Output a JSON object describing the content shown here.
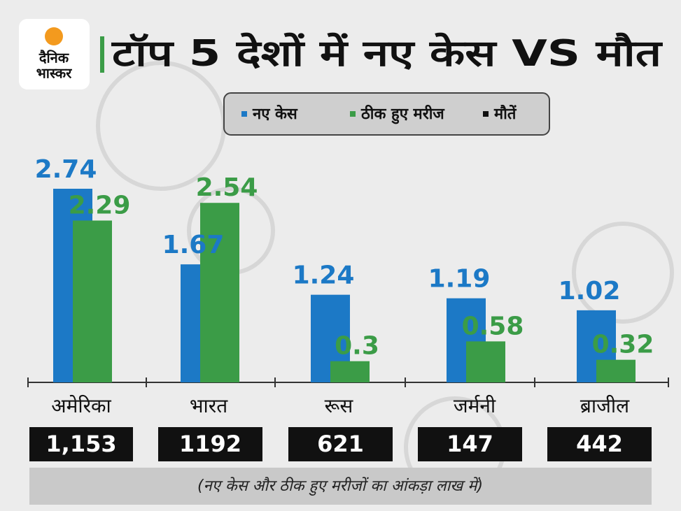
{
  "logo": {
    "line1": "दैनिक",
    "line2": "भास्कर"
  },
  "chart_data": {
    "type": "bar",
    "title": "टॉप 5 देशों में नए केस VS मौत",
    "categories": [
      "अमेरिका",
      "भारत",
      "रूस",
      "जर्मनी",
      "ब्राजील"
    ],
    "series": [
      {
        "name": "नए केस",
        "color": "#1c79c6",
        "values": [
          2.74,
          1.67,
          1.24,
          1.19,
          1.02
        ]
      },
      {
        "name": "ठीक हुए मरीज",
        "color": "#3b9c47",
        "values": [
          2.29,
          2.54,
          0.3,
          0.58,
          0.32
        ]
      },
      {
        "name": "मौतें",
        "color": "#111111",
        "values": [
          1153,
          1192,
          621,
          147,
          442
        ],
        "value_labels": [
          "1,153",
          "1192",
          "621",
          "147",
          "442"
        ]
      }
    ],
    "note": "(नए केस और ठीक हुए मरीजों का आंकड़ा लाख में)"
  }
}
